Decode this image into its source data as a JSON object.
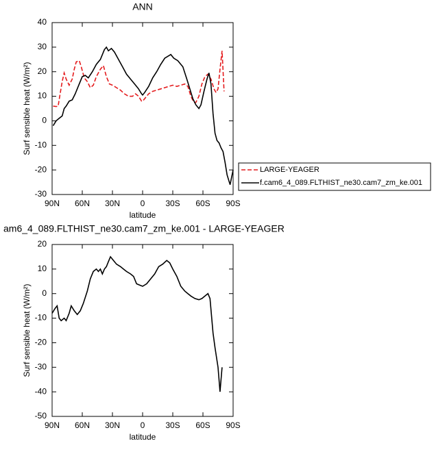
{
  "chart_data": [
    {
      "type": "line",
      "title": "ANN",
      "xlabel": "latitude",
      "ylabel": "Surf sensible heat (W/m²)",
      "xlim": [
        90,
        -90
      ],
      "xticks": [
        {
          "value": 90,
          "label": "90N"
        },
        {
          "value": 60,
          "label": "60N"
        },
        {
          "value": 30,
          "label": "30N"
        },
        0,
        {
          "value": -30,
          "label": "30S"
        },
        {
          "value": -60,
          "label": "60S"
        },
        {
          "value": -90,
          "label": "90S"
        }
      ],
      "ylim": [
        -30,
        40
      ],
      "yticks": [
        -30,
        -20,
        -10,
        0,
        10,
        20,
        30,
        40
      ],
      "legend": "right",
      "series": [
        {
          "name": "LARGE-YEAGER",
          "color": "#e41a1c",
          "style": "dashed",
          "x": [
            89,
            86,
            84,
            82,
            80,
            78,
            76,
            73,
            70,
            68,
            66,
            63,
            61,
            58,
            55,
            52,
            49,
            46,
            42,
            39,
            36,
            33,
            30,
            26,
            22,
            18,
            14,
            10,
            7,
            4,
            1,
            0,
            -2,
            -6,
            -10,
            -14,
            -18,
            -22,
            -26,
            -30,
            -34,
            -38,
            -42,
            -45,
            -48,
            -51,
            -53,
            -56,
            -59,
            -62,
            -65,
            -68,
            -71,
            -73,
            -75,
            -77,
            -79,
            -81
          ],
          "values": [
            6,
            5.8,
            6,
            11,
            16,
            19.5,
            17,
            14.5,
            17,
            21,
            24,
            24.5,
            22,
            17.5,
            16,
            13.5,
            14.5,
            18,
            21,
            22.5,
            18,
            15,
            14.5,
            13.5,
            12.5,
            11,
            10,
            10,
            11,
            10,
            8,
            8,
            9,
            11,
            12,
            12.5,
            13,
            13.5,
            14,
            14.5,
            14,
            14.5,
            15,
            14,
            10,
            7.5,
            7.5,
            10,
            15,
            18,
            19,
            17,
            13,
            11.5,
            13,
            21,
            28.5,
            12
          ]
        },
        {
          "name": "f.cam6_4_089.FLTHIST_ne30.cam7_zm_ke.001",
          "color": "#000000",
          "style": "solid",
          "x": [
            89,
            86,
            83,
            80,
            78,
            76,
            73,
            70,
            67,
            64,
            60,
            57,
            54,
            50,
            46,
            42,
            38,
            36,
            34,
            31,
            28,
            24,
            20,
            16,
            12,
            8,
            4,
            1,
            0,
            -2,
            -6,
            -10,
            -14,
            -18,
            -22,
            -26,
            -28,
            -31,
            -35,
            -40,
            -44,
            -47,
            -50,
            -53,
            -56,
            -58,
            -61,
            -64,
            -66,
            -68,
            -70,
            -72,
            -74,
            -76,
            -78,
            -80,
            -82,
            -84,
            -87,
            -90
          ],
          "values": [
            -2,
            0,
            1,
            2,
            5,
            6,
            8,
            8.5,
            11,
            14,
            18,
            18.5,
            17.5,
            20,
            23,
            25,
            29,
            30,
            28.5,
            29.5,
            28,
            25,
            22,
            19,
            17,
            15,
            13,
            11,
            10.5,
            11.5,
            14,
            17.5,
            20,
            23,
            25.5,
            26.5,
            27,
            25.5,
            24.5,
            22,
            17,
            13,
            9,
            6.5,
            5,
            6.5,
            12,
            17,
            19.5,
            15,
            3,
            -5,
            -8,
            -9,
            -11,
            -12.5,
            -17,
            -22,
            -26,
            -20
          ]
        }
      ]
    },
    {
      "type": "line",
      "title": "am6_4_089.FLTHIST_ne30.cam7_zm_ke.001 - LARGE-YEAGER",
      "xlabel": "latitude",
      "ylabel": "Surf sensible heat (W/m²)",
      "xlim": [
        90,
        -90
      ],
      "xticks": [
        {
          "value": 90,
          "label": "90N"
        },
        {
          "value": 60,
          "label": "60N"
        },
        {
          "value": 30,
          "label": "30N"
        },
        0,
        {
          "value": -30,
          "label": "30S"
        },
        {
          "value": -60,
          "label": "60S"
        },
        {
          "value": -90,
          "label": "90S"
        }
      ],
      "ylim": [
        -50,
        20
      ],
      "yticks": [
        -50,
        -40,
        -30,
        -20,
        -10,
        0,
        10,
        20
      ],
      "series": [
        {
          "color": "#000000",
          "style": "solid",
          "x": [
            90,
            87,
            85,
            83,
            81,
            78,
            76,
            73,
            71,
            68,
            65,
            62,
            59,
            55,
            52,
            49,
            46,
            44,
            42,
            40,
            38,
            36,
            34,
            32,
            30,
            26,
            22,
            19,
            16,
            12,
            9,
            6,
            3,
            0,
            -4,
            -8,
            -12,
            -16,
            -20,
            -24,
            -27,
            -30,
            -34,
            -38,
            -42,
            -45,
            -48,
            -52,
            -56,
            -59,
            -62,
            -65,
            -67,
            -70,
            -72,
            -75,
            -77,
            -79
          ],
          "values": [
            -8,
            -6,
            -5,
            -10,
            -11,
            -10,
            -11,
            -8,
            -5,
            -7,
            -8.5,
            -7,
            -4,
            1,
            6,
            9,
            10,
            9,
            10,
            8,
            10,
            11,
            13,
            15,
            14,
            12,
            11,
            10,
            9,
            8,
            7,
            4,
            3.5,
            3,
            4,
            6,
            8,
            11,
            12,
            13.5,
            12.5,
            10,
            7,
            3,
            1,
            0,
            -1,
            -2,
            -2.5,
            -2,
            -1,
            0,
            -2,
            -16,
            -22,
            -30,
            -40,
            -30
          ]
        }
      ]
    }
  ]
}
